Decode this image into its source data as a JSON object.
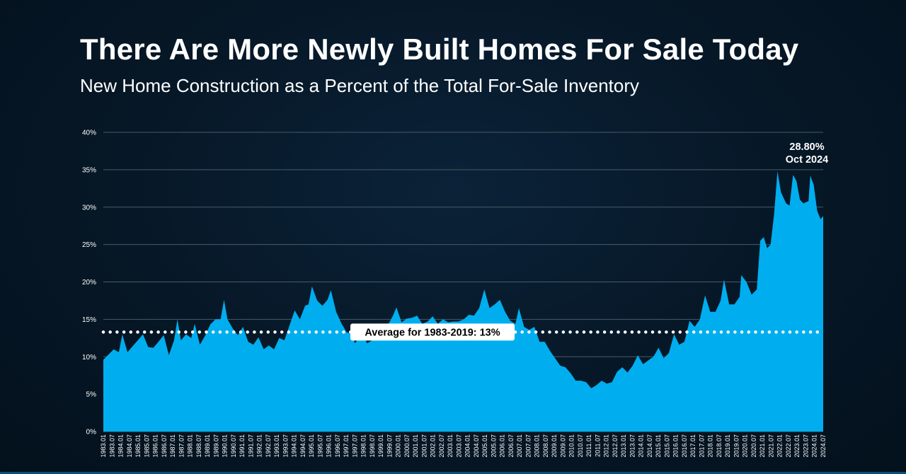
{
  "title": "There Are More Newly Built Homes For Sale Today",
  "subtitle": "New Home Construction as a Percent of the Total For-Sale Inventory",
  "colors": {
    "area": "#00aeef",
    "grid": "#4a5a68",
    "text": "#ffffff",
    "average_line": "#ffffff",
    "badge_bg": "#ffffff",
    "badge_text": "#000000"
  },
  "chart_data": {
    "type": "area",
    "title": "New Home Construction as a Percent of the Total For-Sale Inventory",
    "xlabel": "",
    "ylabel": "",
    "ylim": [
      0,
      40
    ],
    "yticks": [
      "0%",
      "5%",
      "10%",
      "15%",
      "20%",
      "25%",
      "30%",
      "35%",
      "40%"
    ],
    "grid": true,
    "x_tick_labels": [
      "1983.01",
      "1983.07",
      "1984.01",
      "1984.07",
      "1985.01",
      "1985.07",
      "1986.01",
      "1986.07",
      "1987.01",
      "1987.07",
      "1988.01",
      "1988.07",
      "1989.01",
      "1989.07",
      "1990.01",
      "1990.07",
      "1991.01",
      "1991.07",
      "1992.01",
      "1992.07",
      "1993.01",
      "1993.07",
      "1994.01",
      "1994.07",
      "1995.01",
      "1995.07",
      "1996.01",
      "1996.07",
      "1997.01",
      "1997.07",
      "1998.01",
      "1998.07",
      "1999.01",
      "1999.07",
      "2000.01",
      "2000.07",
      "2001.01",
      "2001.07",
      "2002.01",
      "2002.07",
      "2003.01",
      "2003.07",
      "2004.01",
      "2004.07",
      "2005.01",
      "2005.07",
      "2006.01",
      "2006.07",
      "2007.01",
      "2007.07",
      "2008.01",
      "2008.07",
      "2009.01",
      "2009.07",
      "2010.01",
      "2010.07",
      "2011.01",
      "2011.07",
      "2012.01",
      "2012.07",
      "2013.01",
      "2013.07",
      "2014.01",
      "2014.07",
      "2015.01",
      "2015.07",
      "2016.01",
      "2016.07",
      "2017.01",
      "2017.07",
      "2018.01",
      "2018.07",
      "2019.01",
      "2019.07",
      "2020.01",
      "2020.07",
      "2021.01",
      "2021.07",
      "2022.01",
      "2022.07",
      "2023.01",
      "2023.07",
      "2024.01",
      "2024.07"
    ],
    "series": [
      {
        "name": "",
        "points": [
          [
            1983.0,
            9.6
          ],
          [
            1983.3,
            10.3
          ],
          [
            1983.6,
            11.0
          ],
          [
            1983.9,
            10.6
          ],
          [
            1984.1,
            13.0
          ],
          [
            1984.4,
            10.6
          ],
          [
            1984.7,
            11.4
          ],
          [
            1985.0,
            12.2
          ],
          [
            1985.3,
            13.0
          ],
          [
            1985.6,
            11.3
          ],
          [
            1985.9,
            11.2
          ],
          [
            1986.2,
            12.0
          ],
          [
            1986.5,
            12.9
          ],
          [
            1986.8,
            10.2
          ],
          [
            1987.1,
            12.2
          ],
          [
            1987.3,
            15.0
          ],
          [
            1987.5,
            12.2
          ],
          [
            1987.8,
            13.0
          ],
          [
            1988.1,
            12.5
          ],
          [
            1988.3,
            14.4
          ],
          [
            1988.6,
            11.6
          ],
          [
            1988.9,
            12.8
          ],
          [
            1989.2,
            14.3
          ],
          [
            1989.5,
            15.0
          ],
          [
            1989.8,
            15.0
          ],
          [
            1990.0,
            17.6
          ],
          [
            1990.2,
            15.0
          ],
          [
            1990.5,
            13.8
          ],
          [
            1990.8,
            12.9
          ],
          [
            1991.1,
            14.0
          ],
          [
            1991.4,
            12.0
          ],
          [
            1991.7,
            11.6
          ],
          [
            1992.0,
            12.6
          ],
          [
            1992.3,
            11.0
          ],
          [
            1992.6,
            11.5
          ],
          [
            1992.9,
            11.0
          ],
          [
            1993.2,
            12.5
          ],
          [
            1993.5,
            12.2
          ],
          [
            1993.8,
            14.2
          ],
          [
            1994.1,
            16.2
          ],
          [
            1994.4,
            15.0
          ],
          [
            1994.7,
            16.8
          ],
          [
            1994.9,
            17.0
          ],
          [
            1995.1,
            19.4
          ],
          [
            1995.4,
            17.5
          ],
          [
            1995.7,
            16.8
          ],
          [
            1996.0,
            17.6
          ],
          [
            1996.2,
            18.9
          ],
          [
            1996.5,
            16.0
          ],
          [
            1996.8,
            14.5
          ],
          [
            1997.1,
            13.3
          ],
          [
            1997.4,
            13.0
          ],
          [
            1997.6,
            11.8
          ],
          [
            1998.0,
            13.2
          ],
          [
            1998.3,
            11.8
          ],
          [
            1998.6,
            12.2
          ],
          [
            1998.9,
            13.5
          ],
          [
            1999.2,
            14.3
          ],
          [
            1999.5,
            14.2
          ],
          [
            1999.8,
            15.5
          ],
          [
            2000.0,
            16.6
          ],
          [
            2000.3,
            14.6
          ],
          [
            2000.6,
            15.1
          ],
          [
            2000.9,
            15.2
          ],
          [
            2001.2,
            15.5
          ],
          [
            2001.5,
            14.4
          ],
          [
            2001.8,
            14.7
          ],
          [
            2002.1,
            15.4
          ],
          [
            2002.4,
            14.4
          ],
          [
            2002.7,
            15.0
          ],
          [
            2003.0,
            14.6
          ],
          [
            2003.3,
            14.7
          ],
          [
            2003.6,
            14.7
          ],
          [
            2003.9,
            15.0
          ],
          [
            2004.2,
            15.6
          ],
          [
            2004.5,
            15.5
          ],
          [
            2004.8,
            16.5
          ],
          [
            2005.1,
            19.0
          ],
          [
            2005.4,
            16.5
          ],
          [
            2005.7,
            17.0
          ],
          [
            2006.0,
            17.6
          ],
          [
            2006.3,
            16.0
          ],
          [
            2006.6,
            14.8
          ],
          [
            2006.9,
            14.4
          ],
          [
            2007.1,
            16.5
          ],
          [
            2007.4,
            14.0
          ],
          [
            2007.7,
            13.6
          ],
          [
            2008.0,
            14.0
          ],
          [
            2008.3,
            12.0
          ],
          [
            2008.6,
            12.0
          ],
          [
            2008.9,
            10.8
          ],
          [
            2009.2,
            9.8
          ],
          [
            2009.5,
            8.8
          ],
          [
            2009.8,
            8.6
          ],
          [
            2010.1,
            7.8
          ],
          [
            2010.4,
            6.8
          ],
          [
            2010.7,
            6.8
          ],
          [
            2011.0,
            6.6
          ],
          [
            2011.3,
            5.8
          ],
          [
            2011.6,
            6.2
          ],
          [
            2011.9,
            6.8
          ],
          [
            2012.2,
            6.4
          ],
          [
            2012.5,
            6.6
          ],
          [
            2012.8,
            8.0
          ],
          [
            2013.1,
            8.6
          ],
          [
            2013.4,
            7.9
          ],
          [
            2013.7,
            8.8
          ],
          [
            2014.0,
            10.2
          ],
          [
            2014.3,
            9.0
          ],
          [
            2014.6,
            9.5
          ],
          [
            2014.9,
            10.0
          ],
          [
            2015.2,
            11.2
          ],
          [
            2015.5,
            9.8
          ],
          [
            2015.8,
            10.5
          ],
          [
            2016.1,
            13.0
          ],
          [
            2016.4,
            11.6
          ],
          [
            2016.7,
            12.0
          ],
          [
            2017.0,
            14.8
          ],
          [
            2017.3,
            14.0
          ],
          [
            2017.6,
            15.0
          ],
          [
            2017.9,
            18.2
          ],
          [
            2018.2,
            16.0
          ],
          [
            2018.5,
            16.0
          ],
          [
            2018.8,
            17.5
          ],
          [
            2019.0,
            20.3
          ],
          [
            2019.3,
            17.0
          ],
          [
            2019.6,
            17.0
          ],
          [
            2019.9,
            18.0
          ],
          [
            2020.0,
            20.9
          ],
          [
            2020.3,
            20.0
          ],
          [
            2020.6,
            18.3
          ],
          [
            2020.9,
            19.0
          ],
          [
            2021.1,
            25.5
          ],
          [
            2021.3,
            26.0
          ],
          [
            2021.5,
            24.5
          ],
          [
            2021.7,
            25.0
          ],
          [
            2021.9,
            29.0
          ],
          [
            2022.1,
            34.8
          ],
          [
            2022.3,
            32.0
          ],
          [
            2022.6,
            30.5
          ],
          [
            2022.8,
            30.2
          ],
          [
            2023.0,
            34.3
          ],
          [
            2023.2,
            33.5
          ],
          [
            2023.4,
            31.0
          ],
          [
            2023.6,
            30.5
          ],
          [
            2023.9,
            30.8
          ],
          [
            2024.0,
            34.2
          ],
          [
            2024.2,
            33.0
          ],
          [
            2024.4,
            29.5
          ],
          [
            2024.6,
            28.4
          ],
          [
            2024.75,
            28.8
          ]
        ]
      }
    ],
    "average": {
      "value": 13.3,
      "label": "Average for 1983-2019: 13%"
    },
    "annotations": [
      {
        "x": 2024.75,
        "y": 28.8,
        "lines": [
          "28.80%",
          "Oct 2024"
        ]
      }
    ]
  }
}
